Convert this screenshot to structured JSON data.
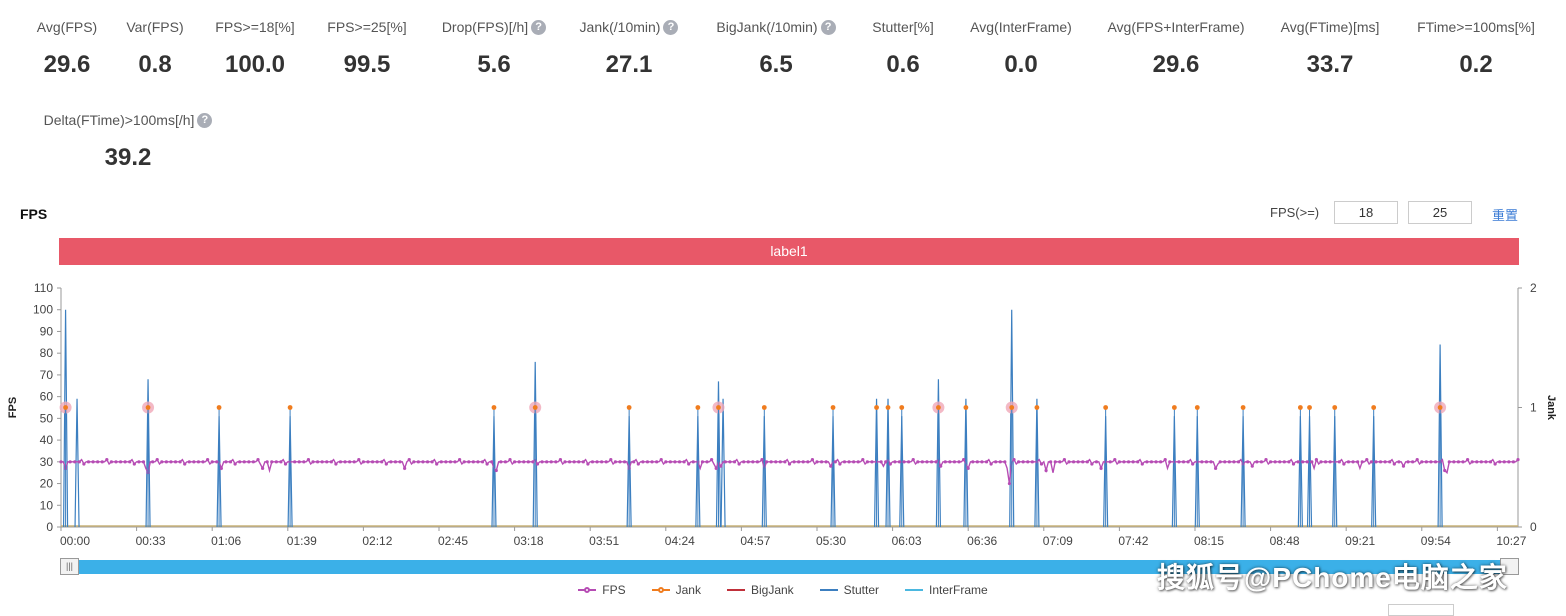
{
  "stats": [
    {
      "label": "Avg(FPS)",
      "value": "29.6",
      "help": false
    },
    {
      "label": "Var(FPS)",
      "value": "0.8",
      "help": false
    },
    {
      "label": "FPS>=18[%]",
      "value": "100.0",
      "help": false
    },
    {
      "label": "FPS>=25[%]",
      "value": "99.5",
      "help": false
    },
    {
      "label": "Drop(FPS)[/h]",
      "value": "5.6",
      "help": true
    },
    {
      "label": "Jank(/10min)",
      "value": "27.1",
      "help": true
    },
    {
      "label": "BigJank(/10min)",
      "value": "6.5",
      "help": true
    },
    {
      "label": "Stutter[%]",
      "value": "0.6",
      "help": false
    },
    {
      "label": "Avg(InterFrame)",
      "value": "0.0",
      "help": false
    },
    {
      "label": "Avg(FPS+InterFrame)",
      "value": "29.6",
      "help": false
    },
    {
      "label": "Avg(FTime)[ms]",
      "value": "33.7",
      "help": false
    },
    {
      "label": "FTime>=100ms[%]",
      "value": "0.2",
      "help": false
    },
    {
      "label": "Delta(FTime)>100ms[/h]",
      "value": "39.2",
      "help": true
    }
  ],
  "help_glyph": "?",
  "chart_title": "FPS",
  "fps_filter": {
    "label": "FPS(>=)",
    "value1": "18",
    "value2": "25",
    "reset": "重置"
  },
  "label_bar": "label1",
  "zoom_handle_glyph": "|||",
  "legend": [
    {
      "name": "FPS",
      "color": "#b64cb4",
      "marker": true
    },
    {
      "name": "Jank",
      "color": "#f07c1e",
      "marker": true
    },
    {
      "name": "BigJank",
      "color": "#c0303a",
      "marker": false
    },
    {
      "name": "Stutter",
      "color": "#3c7fc0",
      "marker": false
    },
    {
      "name": "InterFrame",
      "color": "#4bb8e0",
      "marker": false
    }
  ],
  "watermark": "搜狐号@PChome电脑之家",
  "colors": {
    "fps": "#b64cb4",
    "jank": "#f07c1e",
    "bigjank_halo": "#f0a8b8",
    "stutter": "#3c7fc0",
    "baseline": "#c9b37a",
    "label_bar": "#e85868"
  },
  "chart_data": {
    "type": "line",
    "title": "FPS",
    "xlabel": "",
    "ylabel": "FPS",
    "y2label": "Jank",
    "ylim": [
      0,
      110
    ],
    "y2lim": [
      0,
      2
    ],
    "yticks": [
      0,
      10,
      20,
      30,
      40,
      50,
      60,
      70,
      80,
      90,
      100,
      110
    ],
    "y2ticks": [
      0,
      1,
      2
    ],
    "xlim_seconds": [
      0,
      636
    ],
    "xtick_labels": [
      "00:00",
      "00:33",
      "01:06",
      "01:39",
      "02:12",
      "02:45",
      "03:18",
      "03:51",
      "04:24",
      "04:57",
      "05:30",
      "06:03",
      "06:36",
      "07:09",
      "07:42",
      "08:15",
      "08:48",
      "09:21",
      "09:54",
      "10:27"
    ],
    "fps_baseline": 30,
    "fps_dips": [
      {
        "t": 2,
        "v": 27
      },
      {
        "t": 37,
        "v": 27
      },
      {
        "t": 38,
        "v": 25
      },
      {
        "t": 70,
        "v": 27
      },
      {
        "t": 88,
        "v": 27
      },
      {
        "t": 91,
        "v": 26
      },
      {
        "t": 150,
        "v": 27
      },
      {
        "t": 189,
        "v": 27
      },
      {
        "t": 190,
        "v": 26
      },
      {
        "t": 248,
        "v": 27
      },
      {
        "t": 279,
        "v": 27
      },
      {
        "t": 286,
        "v": 27
      },
      {
        "t": 288,
        "v": 28
      },
      {
        "t": 307,
        "v": 27
      },
      {
        "t": 336,
        "v": 28
      },
      {
        "t": 359,
        "v": 28
      },
      {
        "t": 384,
        "v": 28
      },
      {
        "t": 396,
        "v": 27
      },
      {
        "t": 413,
        "v": 27
      },
      {
        "t": 414,
        "v": 20
      },
      {
        "t": 430,
        "v": 26
      },
      {
        "t": 433,
        "v": 25
      },
      {
        "t": 454,
        "v": 27
      },
      {
        "t": 483,
        "v": 27
      },
      {
        "t": 504,
        "v": 27
      },
      {
        "t": 520,
        "v": 28
      },
      {
        "t": 547,
        "v": 27
      },
      {
        "t": 567,
        "v": 27
      },
      {
        "t": 586,
        "v": 28
      },
      {
        "t": 604,
        "v": 26
      },
      {
        "t": 605,
        "v": 25
      }
    ],
    "stutter_spikes": [
      {
        "t": 2,
        "v": 100
      },
      {
        "t": 7,
        "v": 59
      },
      {
        "t": 38,
        "v": 68
      },
      {
        "t": 69,
        "v": 51
      },
      {
        "t": 100,
        "v": 51
      },
      {
        "t": 189,
        "v": 51
      },
      {
        "t": 207,
        "v": 76
      },
      {
        "t": 248,
        "v": 51
      },
      {
        "t": 278,
        "v": 51
      },
      {
        "t": 287,
        "v": 67
      },
      {
        "t": 289,
        "v": 59
      },
      {
        "t": 307,
        "v": 51
      },
      {
        "t": 337,
        "v": 51
      },
      {
        "t": 356,
        "v": 59
      },
      {
        "t": 361,
        "v": 59
      },
      {
        "t": 367,
        "v": 51
      },
      {
        "t": 383,
        "v": 68
      },
      {
        "t": 395,
        "v": 59
      },
      {
        "t": 415,
        "v": 100
      },
      {
        "t": 426,
        "v": 59
      },
      {
        "t": 456,
        "v": 51
      },
      {
        "t": 486,
        "v": 51
      },
      {
        "t": 496,
        "v": 51
      },
      {
        "t": 516,
        "v": 51
      },
      {
        "t": 541,
        "v": 51
      },
      {
        "t": 545,
        "v": 51
      },
      {
        "t": 556,
        "v": 51
      },
      {
        "t": 573,
        "v": 51
      },
      {
        "t": 602,
        "v": 84
      }
    ],
    "jank_events_seconds": [
      2,
      38,
      69,
      100,
      189,
      207,
      248,
      278,
      287,
      307,
      337,
      356,
      361,
      367,
      383,
      395,
      415,
      426,
      456,
      486,
      496,
      516,
      541,
      545,
      556,
      573,
      602
    ],
    "bigjank_events_seconds": [
      2,
      38,
      207,
      287,
      383,
      415,
      602
    ]
  }
}
